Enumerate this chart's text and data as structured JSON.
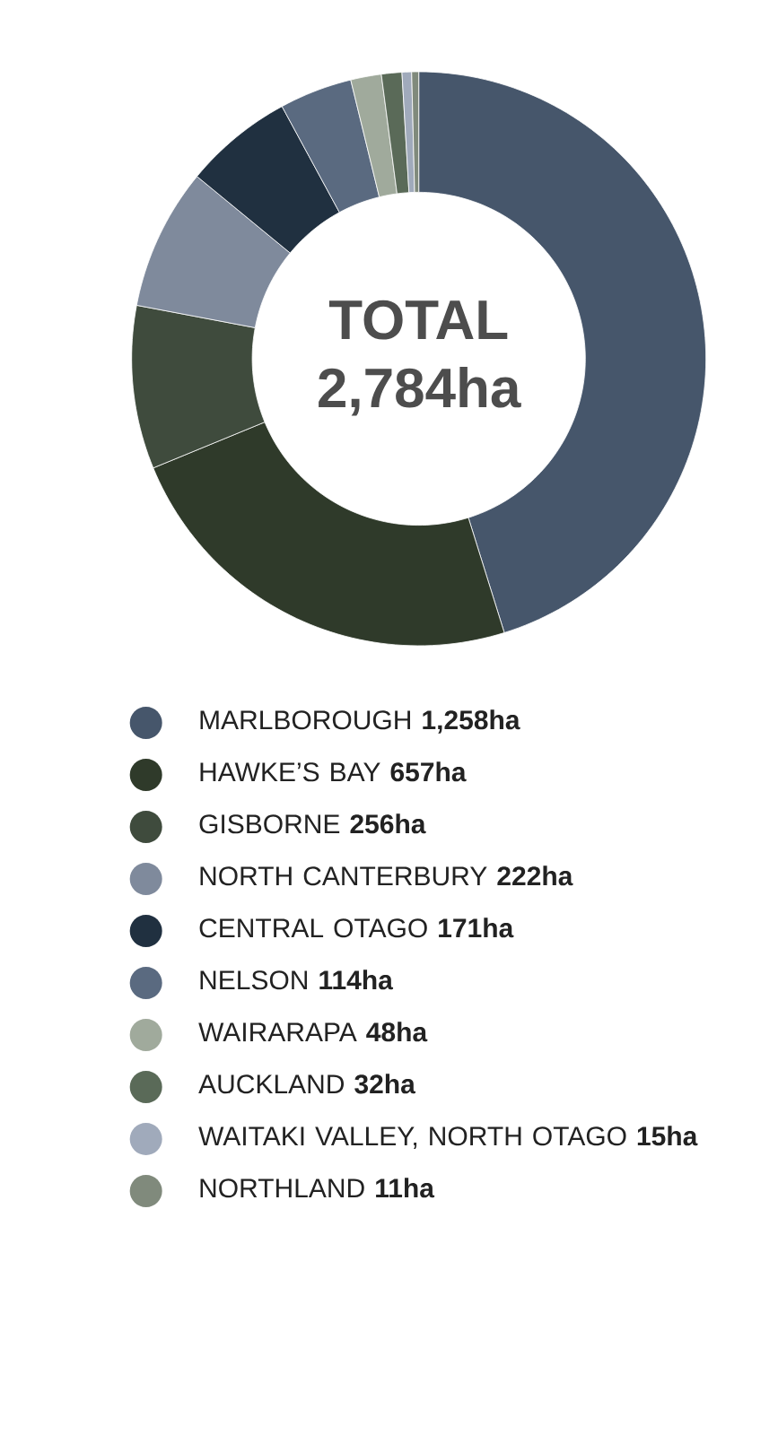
{
  "chart_data": {
    "type": "donut",
    "title": "TOTAL",
    "subtitle": "2,784ha",
    "categories": [
      "MARLBOROUGH",
      "HAWKE’S BAY",
      "GISBORNE",
      "NORTH CANTERBURY",
      "CENTRAL OTAGO",
      "NELSON",
      "WAIRARAPA",
      "AUCKLAND",
      "WAITAKI VALLEY, NORTH OTAGO",
      "NORTHLAND"
    ],
    "values": [
      1258,
      657,
      256,
      222,
      171,
      114,
      48,
      32,
      15,
      11
    ],
    "value_labels": [
      "1,258ha",
      "657ha",
      "256ha",
      "222ha",
      "171ha",
      "114ha",
      "48ha",
      "32ha",
      "15ha",
      "11ha"
    ],
    "colors": [
      "#46566b",
      "#2f3a2a",
      "#3f4b3d",
      "#7f8a9c",
      "#203040",
      "#5a6a80",
      "#a0aa9c",
      "#5a6a58",
      "#a0aabb",
      "#808a7c"
    ],
    "legend": "bottom"
  }
}
